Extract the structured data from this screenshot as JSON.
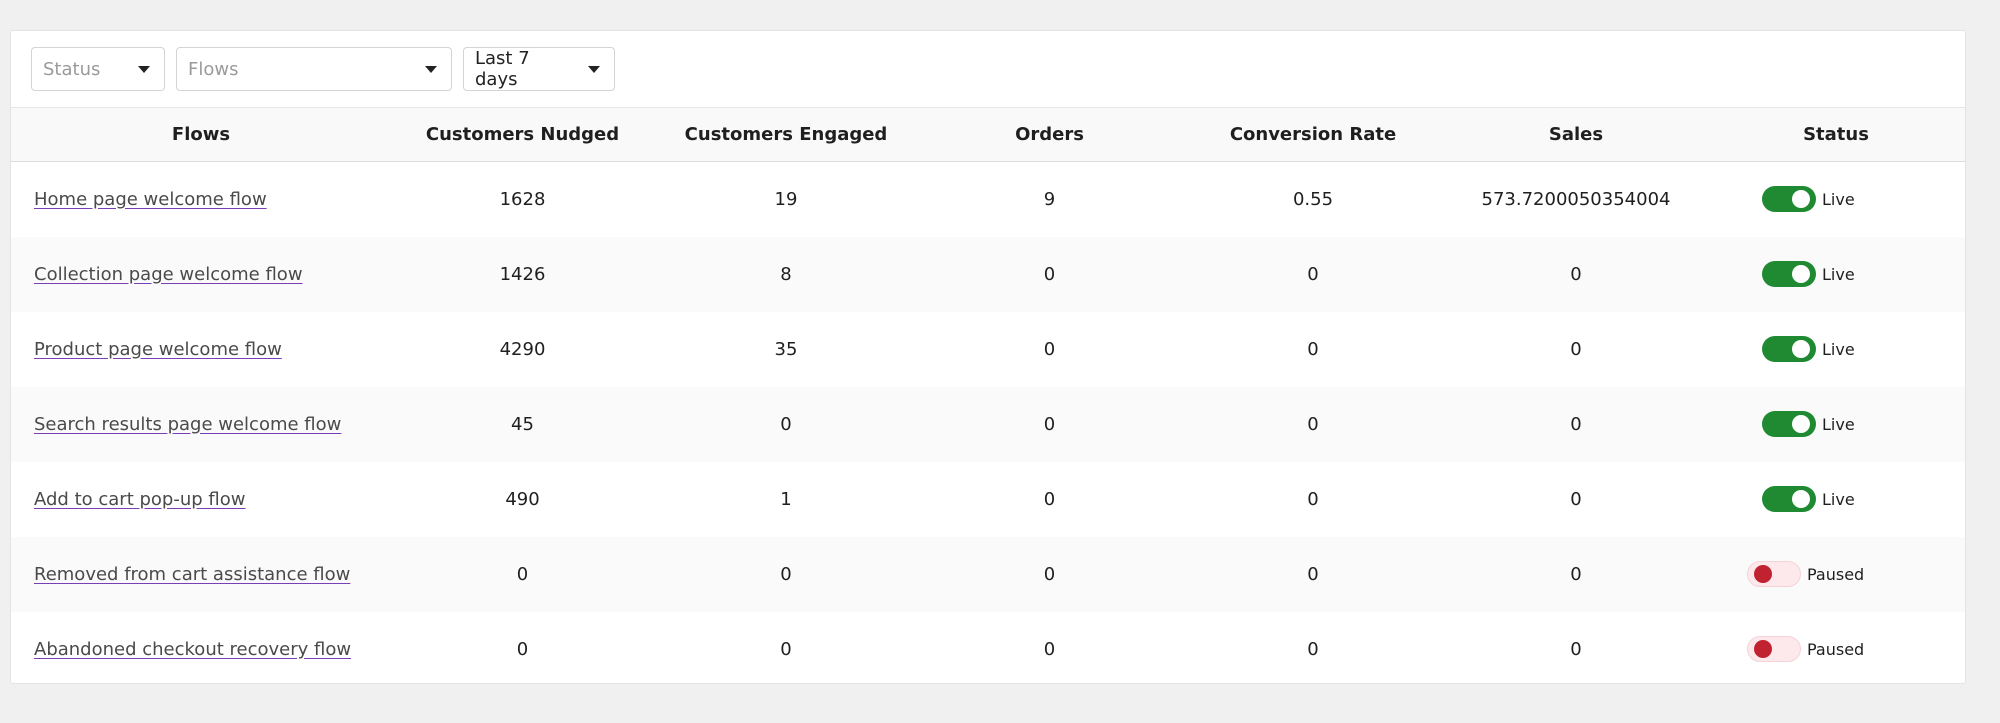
{
  "filters": {
    "status": {
      "value": "Status",
      "placeholder": true
    },
    "flows": {
      "value": "Flows",
      "placeholder": true
    },
    "range": {
      "value": "Last 7 days",
      "placeholder": false
    }
  },
  "table": {
    "headers": [
      "Flows",
      "Customers Nudged",
      "Customers Engaged",
      "Orders",
      "Conversion Rate",
      "Sales",
      "Status"
    ],
    "rows": [
      {
        "flow": "Home page welcome flow",
        "nudged": "1628",
        "engaged": "19",
        "orders": "9",
        "conversion": "0.55",
        "sales": "573.7200050354004",
        "status": "Live",
        "on": true
      },
      {
        "flow": "Collection page welcome flow",
        "nudged": "1426",
        "engaged": "8",
        "orders": "0",
        "conversion": "0",
        "sales": "0",
        "status": "Live",
        "on": true
      },
      {
        "flow": "Product page welcome flow",
        "nudged": "4290",
        "engaged": "35",
        "orders": "0",
        "conversion": "0",
        "sales": "0",
        "status": "Live",
        "on": true
      },
      {
        "flow": "Search results page welcome flow",
        "nudged": "45",
        "engaged": "0",
        "orders": "0",
        "conversion": "0",
        "sales": "0",
        "status": "Live",
        "on": true
      },
      {
        "flow": "Add to cart pop-up flow",
        "nudged": "490",
        "engaged": "1",
        "orders": "0",
        "conversion": "0",
        "sales": "0",
        "status": "Live",
        "on": true
      },
      {
        "flow": "Removed from cart assistance flow",
        "nudged": "0",
        "engaged": "0",
        "orders": "0",
        "conversion": "0",
        "sales": "0",
        "status": "Paused",
        "on": false
      },
      {
        "flow": "Abandoned checkout recovery flow",
        "nudged": "0",
        "engaged": "0",
        "orders": "0",
        "conversion": "0",
        "sales": "0",
        "status": "Paused",
        "on": false
      }
    ]
  },
  "colors": {
    "live_toggle": "#1f8a32",
    "paused_toggle_bg": "#fde8ec",
    "paused_knob": "#c0222f",
    "link_underline": "#7b3fb5"
  },
  "icons": {
    "dropdown": "caret-down-icon"
  }
}
